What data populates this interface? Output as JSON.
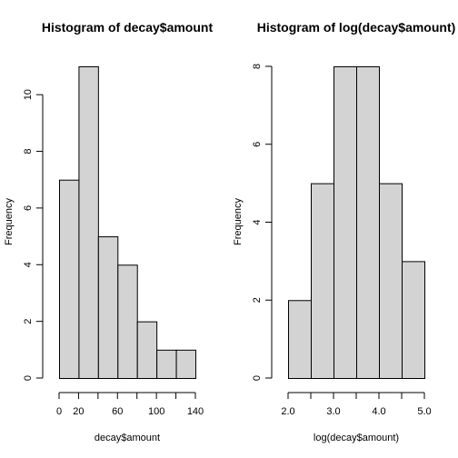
{
  "colors": {
    "bar_fill": "#d3d3d3",
    "bar_stroke": "#000000",
    "axis": "#000000"
  },
  "chart_data": [
    {
      "type": "bar",
      "title": "Histogram of decay$amount",
      "xlabel": "decay$amount",
      "ylabel": "Frequency",
      "bins": [
        [
          0,
          20
        ],
        [
          20,
          40
        ],
        [
          40,
          60
        ],
        [
          60,
          80
        ],
        [
          80,
          100
        ],
        [
          100,
          120
        ],
        [
          120,
          140
        ]
      ],
      "values": [
        7,
        11,
        5,
        4,
        2,
        1,
        1
      ],
      "xlim": [
        0,
        140
      ],
      "ylim": [
        0,
        11
      ],
      "xticks": [
        0,
        20,
        60,
        100,
        140
      ],
      "xtick_marks": [
        0,
        20,
        40,
        60,
        80,
        100,
        120,
        140
      ],
      "yticks": [
        0,
        2,
        4,
        6,
        8,
        10
      ],
      "grid": false
    },
    {
      "type": "bar",
      "title": "Histogram of log(decay$amount)",
      "xlabel": "log(decay$amount)",
      "ylabel": "Frequency",
      "bins": [
        [
          2.0,
          2.5
        ],
        [
          2.5,
          3.0
        ],
        [
          3.0,
          3.5
        ],
        [
          3.5,
          4.0
        ],
        [
          4.0,
          4.5
        ],
        [
          4.5,
          5.0
        ]
      ],
      "values": [
        2,
        5,
        8,
        8,
        5,
        3
      ],
      "xlim": [
        2.0,
        5.0
      ],
      "ylim": [
        0,
        8
      ],
      "xticks": [
        2.0,
        3.0,
        4.0,
        5.0
      ],
      "xtick_labels": [
        "2.0",
        "3.0",
        "4.0",
        "5.0"
      ],
      "xtick_marks": [
        2.0,
        2.5,
        3.0,
        3.5,
        4.0,
        4.5,
        5.0
      ],
      "yticks": [
        0,
        2,
        4,
        6,
        8
      ],
      "grid": false
    }
  ]
}
